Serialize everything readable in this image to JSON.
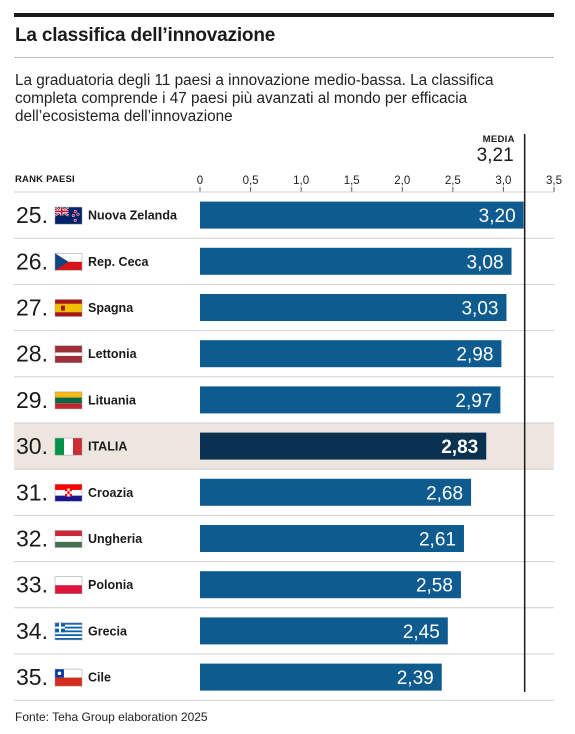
{
  "header": {
    "title": "La classifica dell’innovazione",
    "subtitle": "La graduatoria degli 11 paesi a innovazione medio-bassa. La classifica completa comprende i 47 paesi più avanzati al mondo per efficacia dell’ecosistema dell’innovazione"
  },
  "columns": {
    "rank_countries": "RANK PAESI"
  },
  "media": {
    "label": "MEDIA",
    "value_text": "3,21",
    "value": 3.21
  },
  "footer": {
    "source": "Fonte: Teha Group elaboration 2025"
  },
  "colors": {
    "bar": "#0e5b8f",
    "bar_highlight": "#0b3150",
    "highlight_row": "#ece6df",
    "media_line": "#1a1a1a"
  },
  "chart_data": {
    "type": "bar",
    "orientation": "horizontal",
    "xlim": [
      0,
      3.5
    ],
    "ticks": [
      0,
      0.5,
      1.0,
      1.5,
      2.0,
      2.5,
      3.0,
      3.5
    ],
    "tick_labels": [
      "0",
      "0,5",
      "1,0",
      "1,5",
      "2,0",
      "2,5",
      "3,0",
      "3,5"
    ],
    "reference_line": {
      "label": "MEDIA",
      "value": 3.21
    },
    "rows": [
      {
        "rank": "25.",
        "country": "Nuova Zelanda",
        "flag": "new-zealand-flag",
        "value": 3.2,
        "value_label": "3,20",
        "highlight": false
      },
      {
        "rank": "26.",
        "country": "Rep. Ceca",
        "flag": "czech-flag",
        "value": 3.08,
        "value_label": "3,08",
        "highlight": false
      },
      {
        "rank": "27.",
        "country": "Spagna",
        "flag": "spain-flag",
        "value": 3.03,
        "value_label": "3,03",
        "highlight": false
      },
      {
        "rank": "28.",
        "country": "Lettonia",
        "flag": "latvia-flag",
        "value": 2.98,
        "value_label": "2,98",
        "highlight": false
      },
      {
        "rank": "29.",
        "country": "Lituania",
        "flag": "lithuania-flag",
        "value": 2.97,
        "value_label": "2,97",
        "highlight": false
      },
      {
        "rank": "30.",
        "country": "ITALIA",
        "flag": "italy-flag",
        "value": 2.83,
        "value_label": "2,83",
        "highlight": true
      },
      {
        "rank": "31.",
        "country": "Croazia",
        "flag": "croatia-flag",
        "value": 2.68,
        "value_label": "2,68",
        "highlight": false
      },
      {
        "rank": "32.",
        "country": "Ungheria",
        "flag": "hungary-flag",
        "value": 2.61,
        "value_label": "2,61",
        "highlight": false
      },
      {
        "rank": "33.",
        "country": "Polonia",
        "flag": "poland-flag",
        "value": 2.58,
        "value_label": "2,58",
        "highlight": false
      },
      {
        "rank": "34.",
        "country": "Grecia",
        "flag": "greece-flag",
        "value": 2.45,
        "value_label": "2,45",
        "highlight": false
      },
      {
        "rank": "35.",
        "country": "Cile",
        "flag": "chile-flag",
        "value": 2.39,
        "value_label": "2,39",
        "highlight": false
      }
    ]
  }
}
